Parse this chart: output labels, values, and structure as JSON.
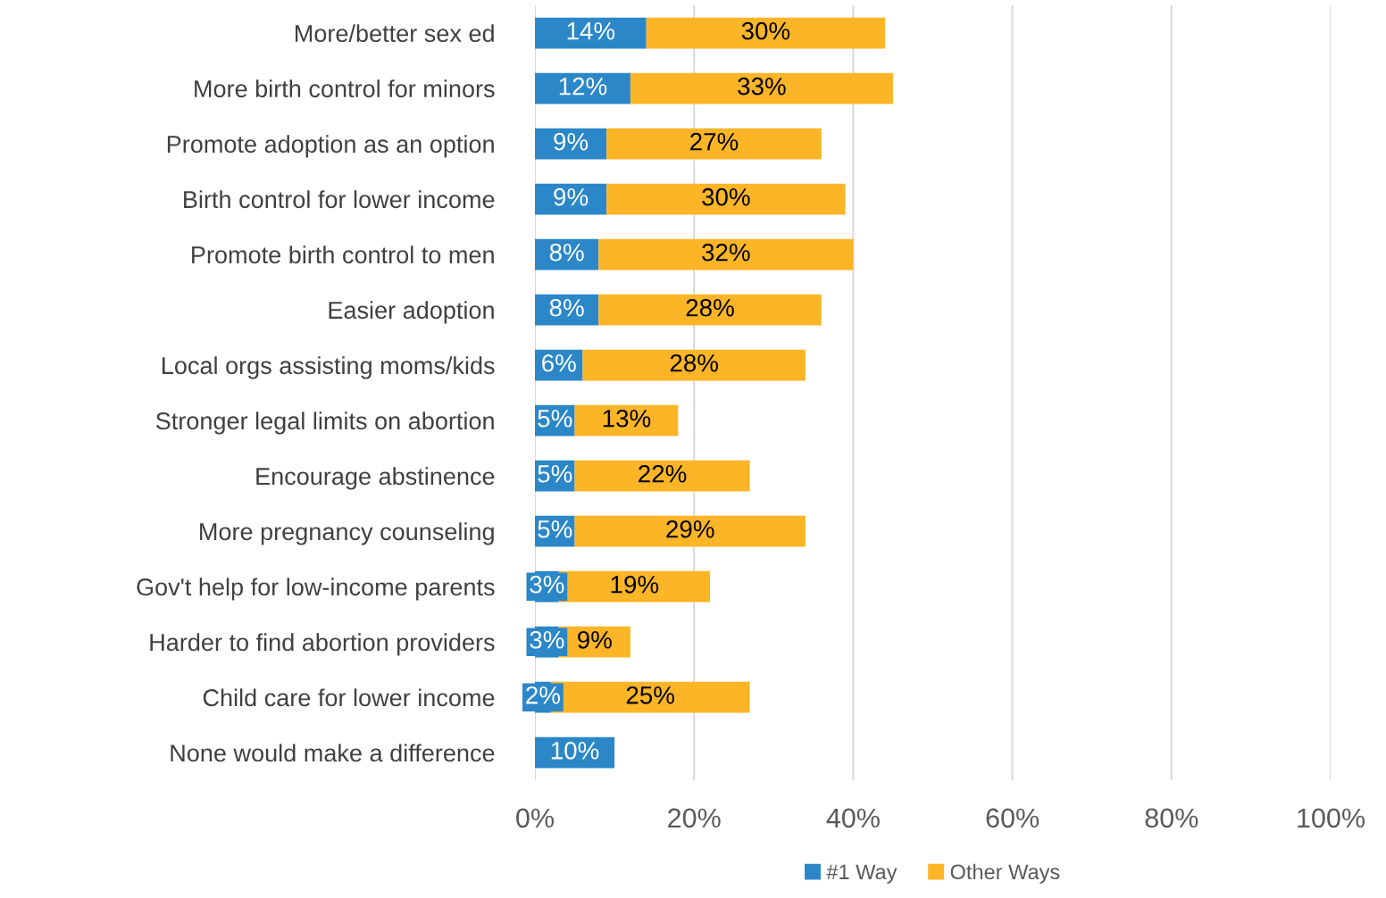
{
  "chart_data": {
    "type": "bar",
    "orientation": "horizontal",
    "stacked": true,
    "categories": [
      "More/better sex ed",
      "More birth control for minors",
      "Promote adoption as an option",
      "Birth control for lower income",
      "Promote birth control to men",
      "Easier adoption",
      "Local orgs assisting moms/kids",
      "Stronger legal limits on abortion",
      "Encourage abstinence",
      "More pregnancy counseling",
      "Gov't help for low-income parents",
      "Harder to find abortion providers",
      "Child care for lower income",
      "None would make a difference"
    ],
    "series": [
      {
        "name": "#1 Way",
        "color": "#2b87c8",
        "values": [
          14,
          12,
          9,
          9,
          8,
          8,
          6,
          5,
          5,
          5,
          3,
          3,
          2,
          10
        ],
        "value_labels": [
          "14%",
          "12%",
          "9%",
          "9%",
          "8%",
          "8%",
          "6%",
          "5%",
          "5%",
          "5%",
          "3%",
          "3%",
          "2%",
          "10%"
        ]
      },
      {
        "name": "Other Ways",
        "color": "#fcb526",
        "values": [
          30,
          33,
          27,
          30,
          32,
          28,
          28,
          13,
          22,
          29,
          19,
          9,
          25,
          null
        ],
        "value_labels": [
          "30%",
          "33%",
          "27%",
          "30%",
          "32%",
          "28%",
          "28%",
          "13%",
          "22%",
          "29%",
          "19%",
          "9%",
          "25%",
          null
        ]
      }
    ],
    "xlim": [
      0,
      100
    ],
    "xticks": [
      {
        "value": 0,
        "label": "0%"
      },
      {
        "value": 20,
        "label": "20%"
      },
      {
        "value": 40,
        "label": "40%"
      },
      {
        "value": 60,
        "label": "60%"
      },
      {
        "value": 80,
        "label": "80%"
      },
      {
        "value": 100,
        "label": "100%"
      }
    ],
    "grid": "x",
    "legend": "bottom"
  }
}
